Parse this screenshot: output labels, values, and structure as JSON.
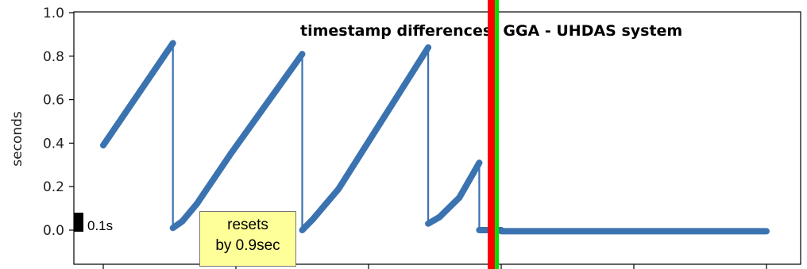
{
  "chart_data": {
    "type": "line",
    "title": "timestamp differences: GGA - UHDAS system",
    "xlabel": "",
    "ylabel": "seconds",
    "ylim": [
      -0.15,
      1.0
    ],
    "y_ticks": [
      0.0,
      0.2,
      0.4,
      0.6,
      0.8,
      1.0
    ],
    "y_tick_labels": [
      "0.0",
      "0.2",
      "0.4",
      "0.6",
      "0.8",
      "1.0"
    ],
    "x_tick_count": 6,
    "grid": false,
    "series_color": "#3b73b0",
    "series": [
      {
        "segments": [
          {
            "x": [
              0.0,
              0.105
            ],
            "y": [
              0.39,
              0.86
            ]
          },
          {
            "x": [
              0.105,
              0.105
            ],
            "y": [
              0.86,
              0.01
            ]
          },
          {
            "x": [
              0.105,
              0.119,
              0.141,
              0.192,
              0.3
            ],
            "y": [
              0.01,
              0.04,
              0.12,
              0.35,
              0.81
            ]
          },
          {
            "x": [
              0.3,
              0.3
            ],
            "y": [
              0.81,
              0.0
            ]
          },
          {
            "x": [
              0.3,
              0.316,
              0.355,
              0.49
            ],
            "y": [
              0.0,
              0.05,
              0.19,
              0.84
            ]
          },
          {
            "x": [
              0.49,
              0.49
            ],
            "y": [
              0.84,
              0.03
            ]
          },
          {
            "x": [
              0.49,
              0.507,
              0.537,
              0.567
            ],
            "y": [
              0.03,
              0.06,
              0.15,
              0.31
            ]
          },
          {
            "x": [
              0.567,
              0.567
            ],
            "y": [
              0.31,
              0.0
            ]
          },
          {
            "x": [
              0.567,
              0.6
            ],
            "y": [
              0.0,
              0.0
            ]
          },
          {
            "x": [
              0.6,
              1.0
            ],
            "y": [
              -0.005,
              -0.005
            ]
          }
        ]
      }
    ]
  },
  "annotations": {
    "scale_bar_label": "0.1s",
    "callout_line1": "resets",
    "callout_line2": "by 0.9sec",
    "marker_red": "#ff0000",
    "marker_green": "#00e000",
    "callout_bg": "#ffff99"
  }
}
